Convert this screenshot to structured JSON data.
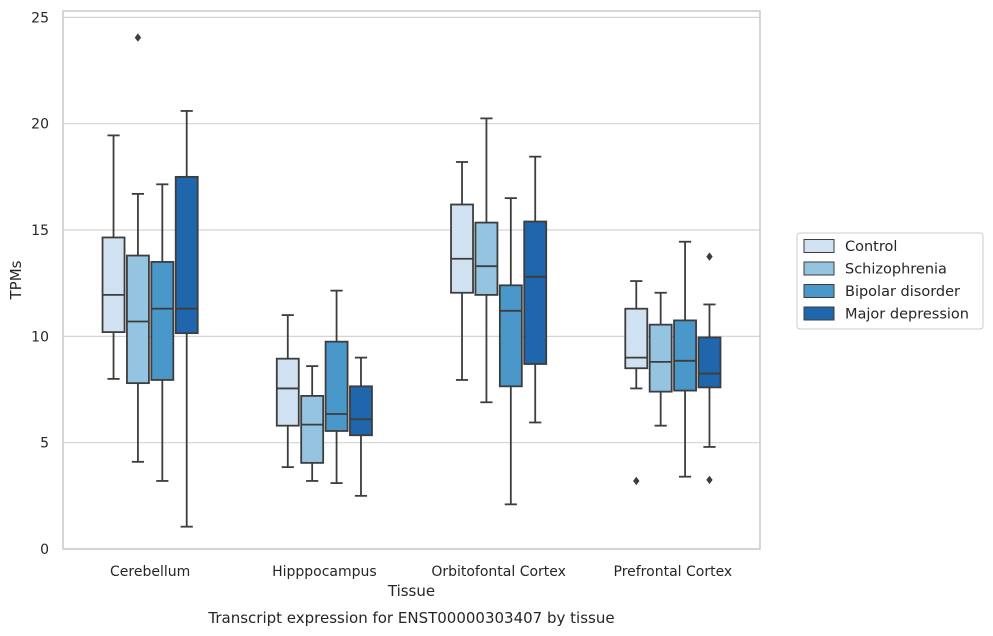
{
  "caption": "Transcript expression for ENST00000303407 by tissue",
  "chart_data": {
    "type": "box",
    "xlabel": "Tissue",
    "ylabel": "TPMs",
    "ylim": [
      0,
      25.3
    ],
    "yticks": [
      0,
      5,
      10,
      15,
      20,
      25
    ],
    "grid": "horizontal",
    "legend_position": "right",
    "categories": [
      "Cerebellum",
      "Hipppocampus",
      "Orbitofontal Cortex",
      "Prefrontal Cortex"
    ],
    "series": [
      {
        "name": "Control",
        "color": "#d0e1f2",
        "boxes": [
          {
            "whislo": 8.0,
            "q1": 10.2,
            "med": 11.95,
            "q3": 14.65,
            "whishi": 19.45,
            "fliers": []
          },
          {
            "whislo": 3.85,
            "q1": 5.8,
            "med": 7.55,
            "q3": 8.95,
            "whishi": 11.0,
            "fliers": []
          },
          {
            "whislo": 7.95,
            "q1": 12.05,
            "med": 13.65,
            "q3": 16.2,
            "whishi": 18.2,
            "fliers": []
          },
          {
            "whislo": 7.55,
            "q1": 8.5,
            "med": 9.0,
            "q3": 11.3,
            "whishi": 12.6,
            "fliers": [
              3.2
            ]
          }
        ]
      },
      {
        "name": "Schizophrenia",
        "color": "#94c4df",
        "boxes": [
          {
            "whislo": 4.1,
            "q1": 7.8,
            "med": 10.7,
            "q3": 13.8,
            "whishi": 16.7,
            "fliers": [
              24.05
            ]
          },
          {
            "whislo": 3.2,
            "q1": 4.05,
            "med": 5.85,
            "q3": 7.2,
            "whishi": 8.6,
            "fliers": []
          },
          {
            "whislo": 6.9,
            "q1": 11.95,
            "med": 13.3,
            "q3": 15.35,
            "whishi": 20.25,
            "fliers": []
          },
          {
            "whislo": 5.8,
            "q1": 7.4,
            "med": 8.8,
            "q3": 10.55,
            "whishi": 12.05,
            "fliers": []
          }
        ]
      },
      {
        "name": "Bipolar disorder",
        "color": "#4a98c9",
        "boxes": [
          {
            "whislo": 3.2,
            "q1": 7.95,
            "med": 11.3,
            "q3": 13.5,
            "whishi": 17.15,
            "fliers": []
          },
          {
            "whislo": 3.1,
            "q1": 5.55,
            "med": 6.35,
            "q3": 9.75,
            "whishi": 12.15,
            "fliers": []
          },
          {
            "whislo": 2.1,
            "q1": 7.65,
            "med": 11.2,
            "q3": 12.4,
            "whishi": 16.5,
            "fliers": []
          },
          {
            "whislo": 3.4,
            "q1": 7.45,
            "med": 8.85,
            "q3": 10.75,
            "whishi": 14.45,
            "fliers": []
          }
        ]
      },
      {
        "name": "Major depression",
        "color": "#2066ac",
        "boxes": [
          {
            "whislo": 1.05,
            "q1": 10.15,
            "med": 11.3,
            "q3": 17.5,
            "whishi": 20.6,
            "fliers": []
          },
          {
            "whislo": 2.5,
            "q1": 5.35,
            "med": 6.1,
            "q3": 7.65,
            "whishi": 9.0,
            "fliers": []
          },
          {
            "whislo": 5.95,
            "q1": 8.7,
            "med": 12.8,
            "q3": 15.4,
            "whishi": 18.45,
            "fliers": []
          },
          {
            "whislo": 4.8,
            "q1": 7.6,
            "med": 8.25,
            "q3": 9.95,
            "whishi": 11.5,
            "fliers": [
              13.75,
              3.25
            ]
          }
        ]
      }
    ]
  }
}
